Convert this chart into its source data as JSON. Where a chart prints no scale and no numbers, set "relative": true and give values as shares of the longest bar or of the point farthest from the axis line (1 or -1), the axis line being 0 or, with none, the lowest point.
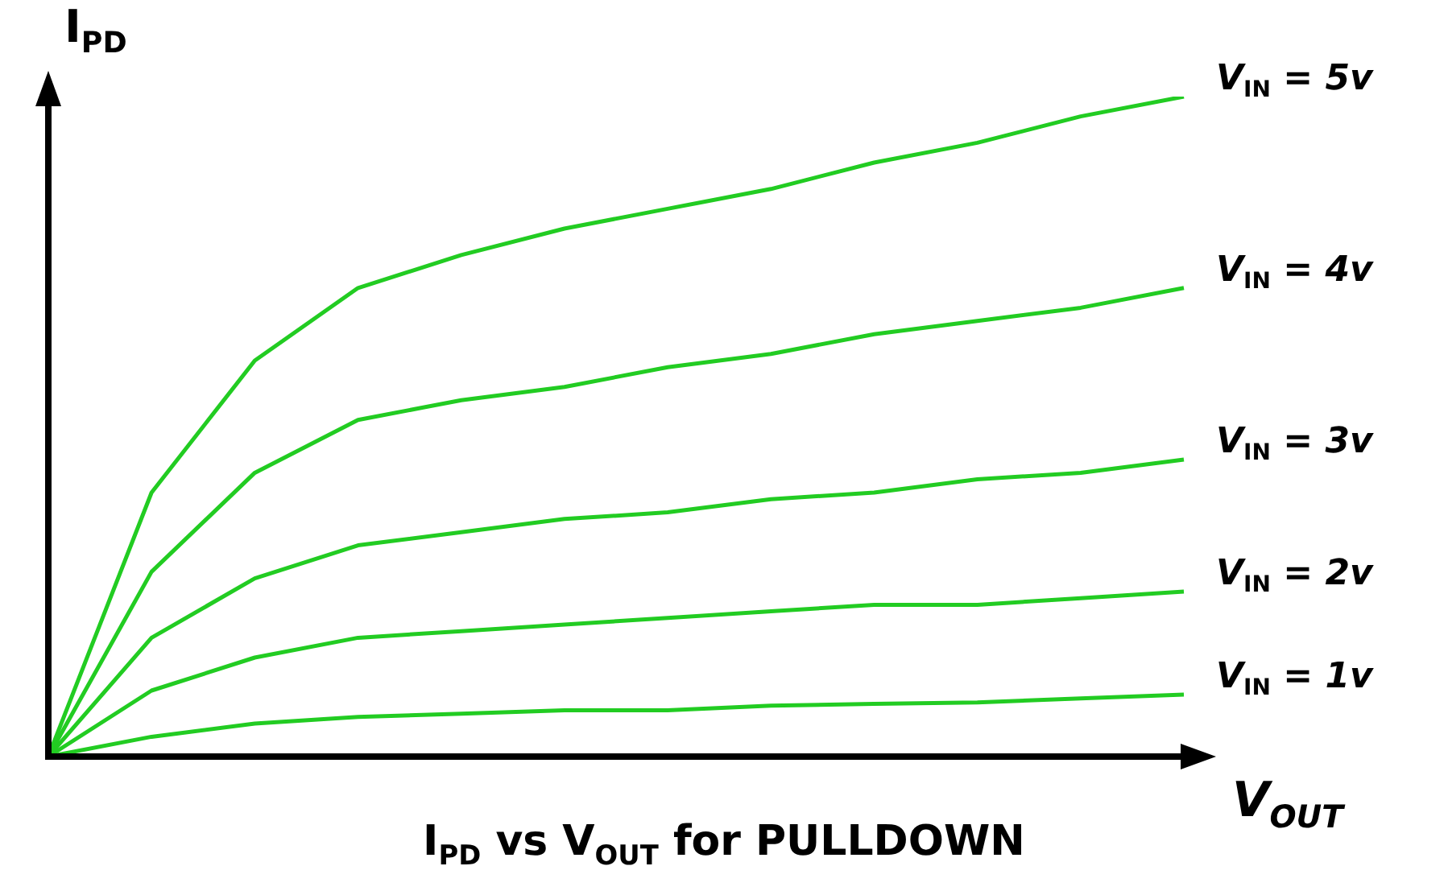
{
  "chart_data": {
    "type": "line",
    "title": "I$_{PD}$ vs V$_{OUT}$ for PULLDOWN",
    "xlabel": "V$_{OUT}$",
    "ylabel": "I$_{PD}$",
    "relative": true,
    "grid": false,
    "legend": false,
    "tick_labels": false,
    "marker": "none",
    "line_style": "solid",
    "categories": [
      null,
      null,
      null,
      null,
      null,
      null,
      null,
      null,
      null,
      null,
      null,
      null
    ],
    "series": [
      {
        "name": "V$_{IN}$ = 5v",
        "color": "#22cc22",
        "values": [
          0,
          0.4,
          0.6,
          0.71,
          0.76,
          0.8,
          0.83,
          0.86,
          0.9,
          0.93,
          0.97,
          1
        ]
      },
      {
        "name": "V$_{IN}$ = 4v",
        "color": "#22cc22",
        "values": [
          0,
          0.28,
          0.43,
          0.51,
          0.54,
          0.56,
          0.59,
          0.61,
          0.64,
          0.66,
          0.68,
          0.71
        ]
      },
      {
        "name": "V$_{IN}$ = 3v",
        "color": "#22cc22",
        "values": [
          0,
          0.18,
          0.27,
          0.32,
          0.34,
          0.36,
          0.37,
          0.39,
          0.4,
          0.42,
          0.43,
          0.45
        ]
      },
      {
        "name": "V$_{IN}$ = 2v",
        "color": "#22cc22",
        "values": [
          0,
          0.1,
          0.15,
          0.18,
          0.19,
          0.2,
          0.21,
          0.22,
          0.23,
          0.23,
          0.24,
          0.25
        ]
      },
      {
        "name": "V$_{IN}$ = 1v",
        "color": "#22cc22",
        "values": [
          0,
          0.03,
          0.05,
          0.06,
          0.065,
          0.07,
          0.07,
          0.077,
          0.08,
          0.082,
          0.088,
          0.094
        ]
      }
    ]
  }
}
